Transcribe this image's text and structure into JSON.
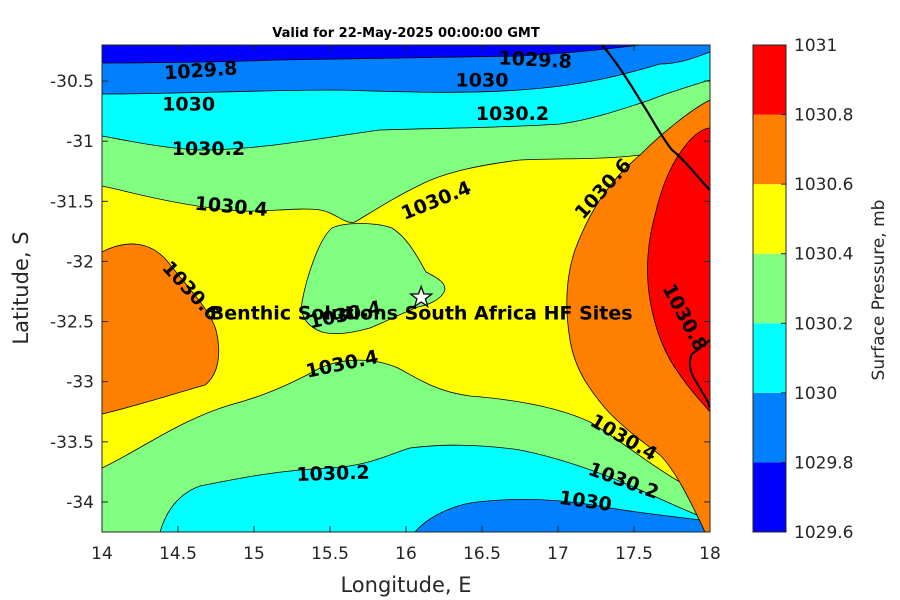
{
  "chart_data": {
    "type": "contour-map",
    "title": "Valid for 22-May-2025 00:00:00 GMT",
    "xlabel": "Longitude, E",
    "ylabel": "Latitude, S",
    "xlim": [
      14,
      18
    ],
    "ylim": [
      -34.25,
      -30.2
    ],
    "x_ticks": [
      {
        "value": 14,
        "label": "14"
      },
      {
        "value": 14.5,
        "label": "14.5"
      },
      {
        "value": 15,
        "label": "15"
      },
      {
        "value": 15.5,
        "label": "15.5"
      },
      {
        "value": 16,
        "label": "16"
      },
      {
        "value": 16.5,
        "label": "16.5"
      },
      {
        "value": 17,
        "label": "17"
      },
      {
        "value": 17.5,
        "label": "17.5"
      },
      {
        "value": 18,
        "label": "18"
      }
    ],
    "y_ticks": [
      {
        "value": -30.5,
        "label": "-30.5"
      },
      {
        "value": -31,
        "label": "-31"
      },
      {
        "value": -31.5,
        "label": "-31.5"
      },
      {
        "value": -32,
        "label": "-32"
      },
      {
        "value": -32.5,
        "label": "-32.5"
      },
      {
        "value": -33,
        "label": "-33"
      },
      {
        "value": -33.5,
        "label": "-33.5"
      },
      {
        "value": -34,
        "label": "-34"
      }
    ],
    "colorbar": {
      "label": "Surface Pressure, mb",
      "levels": [
        1029.6,
        1029.8,
        1030,
        1030.2,
        1030.4,
        1030.6,
        1030.8,
        1031
      ],
      "level_labels": [
        "1029.6",
        "1029.8",
        "1030",
        "1030.2",
        "1030.4",
        "1030.6",
        "1030.8",
        "1031"
      ],
      "colors": [
        "#0000ff",
        "#0080ff",
        "#00ffff",
        "#80ff80",
        "#ffff00",
        "#ff8000",
        "#ff0000",
        "#800000"
      ]
    },
    "contour_labels": [
      {
        "text": "1029.8",
        "lon": 14.65,
        "lat": -30.42,
        "angle": -4
      },
      {
        "text": "1029.8",
        "lon": 16.85,
        "lat": -30.33,
        "angle": 3
      },
      {
        "text": "1030",
        "lon": 14.57,
        "lat": -30.7,
        "angle": 0
      },
      {
        "text": "1030",
        "lon": 16.5,
        "lat": -30.5,
        "angle": 0
      },
      {
        "text": "1030.2",
        "lon": 14.7,
        "lat": -31.07,
        "angle": 0
      },
      {
        "text": "1030.2",
        "lon": 16.7,
        "lat": -30.78,
        "angle": 0
      },
      {
        "text": "1030.4",
        "lon": 14.85,
        "lat": -31.55,
        "angle": 5
      },
      {
        "text": "1030.4",
        "lon": 16.2,
        "lat": -31.5,
        "angle": -22
      },
      {
        "text": "1030.6",
        "lon": 17.3,
        "lat": -31.4,
        "angle": -48
      },
      {
        "text": "1030.6",
        "lon": 14.58,
        "lat": -32.25,
        "angle": 47
      },
      {
        "text": "1030.8",
        "lon": 17.83,
        "lat": -32.47,
        "angle": 62
      },
      {
        "text": "1030.4",
        "lon": 15.6,
        "lat": -32.45,
        "angle": -12
      },
      {
        "text": "1030.4",
        "lon": 15.58,
        "lat": -32.86,
        "angle": -12
      },
      {
        "text": "1030.4",
        "lon": 17.43,
        "lat": -33.47,
        "angle": 30
      },
      {
        "text": "1030.2",
        "lon": 15.52,
        "lat": -33.77,
        "angle": -2
      },
      {
        "text": "1030.2",
        "lon": 17.43,
        "lat": -33.83,
        "angle": 20
      },
      {
        "text": "1030",
        "lon": 17.18,
        "lat": -34.0,
        "angle": 8
      }
    ],
    "sites": [
      {
        "name": "Benthic Solutions South Africa HF Sites",
        "lon": 16.1,
        "lat": -32.3
      }
    ]
  }
}
